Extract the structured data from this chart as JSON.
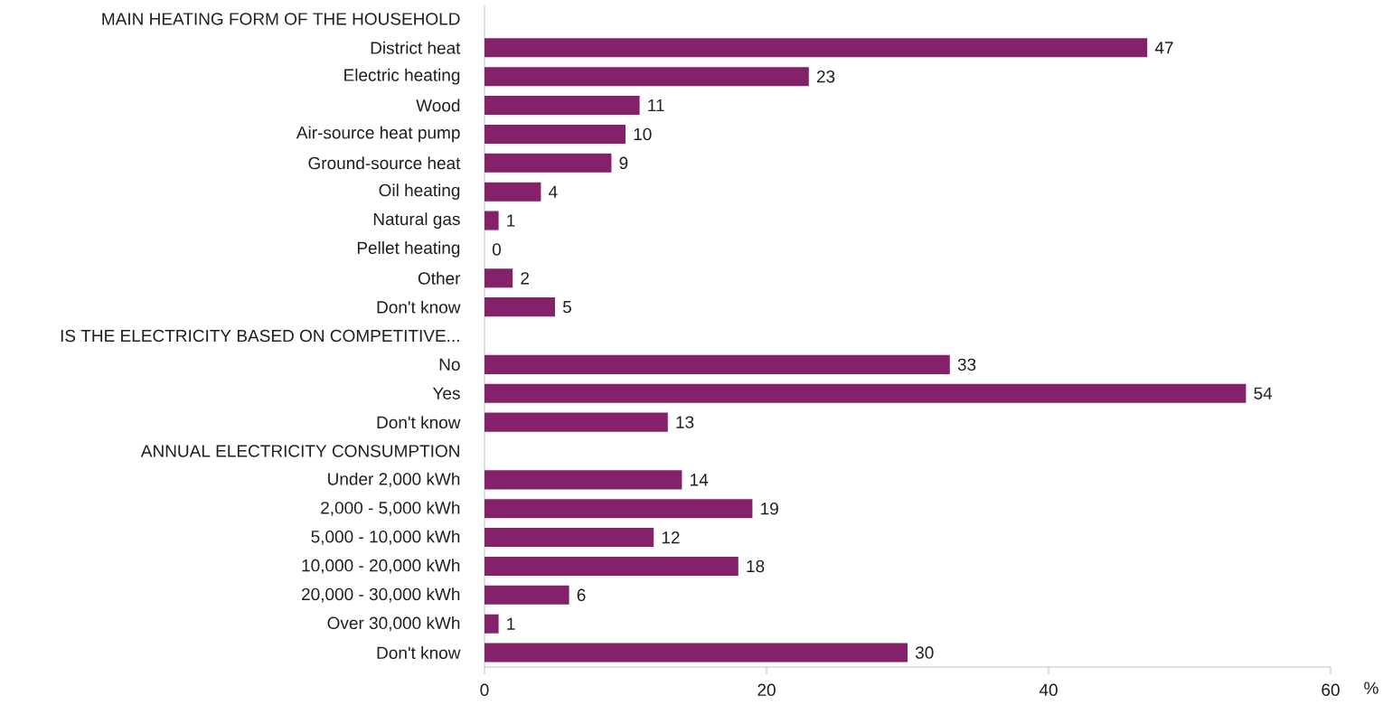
{
  "chart_data": {
    "type": "bar",
    "orientation": "horizontal",
    "xlabel": "%",
    "categories": [
      "MAIN HEATING FORM OF THE HOUSEHOLD",
      "District heat",
      "Electric heating",
      "Wood",
      "Air-source heat pump",
      "Ground-source heat",
      "Oil heating",
      "Natural gas",
      "Pellet heating",
      "Other",
      "Don't know",
      "IS THE ELECTRICITY BASED ON COMPETITIVE...",
      "No",
      "Yes",
      "Don't know",
      "ANNUAL ELECTRICITY CONSUMPTION",
      "Under 2,000 kWh",
      "2,000 - 5,000 kWh",
      "5,000 - 10,000 kWh",
      "10,000 - 20,000 kWh",
      "20,000 - 30,000 kWh",
      "Over 30,000 kWh",
      "Don't know"
    ],
    "values": [
      null,
      47,
      23,
      11,
      10,
      9,
      4,
      1,
      0,
      2,
      5,
      null,
      33,
      54,
      13,
      null,
      14,
      19,
      12,
      18,
      6,
      1,
      30
    ],
    "color": "#84216b",
    "xlim": [
      0,
      60
    ],
    "xticks": [
      0,
      20,
      40,
      60
    ],
    "data_labels": true
  }
}
